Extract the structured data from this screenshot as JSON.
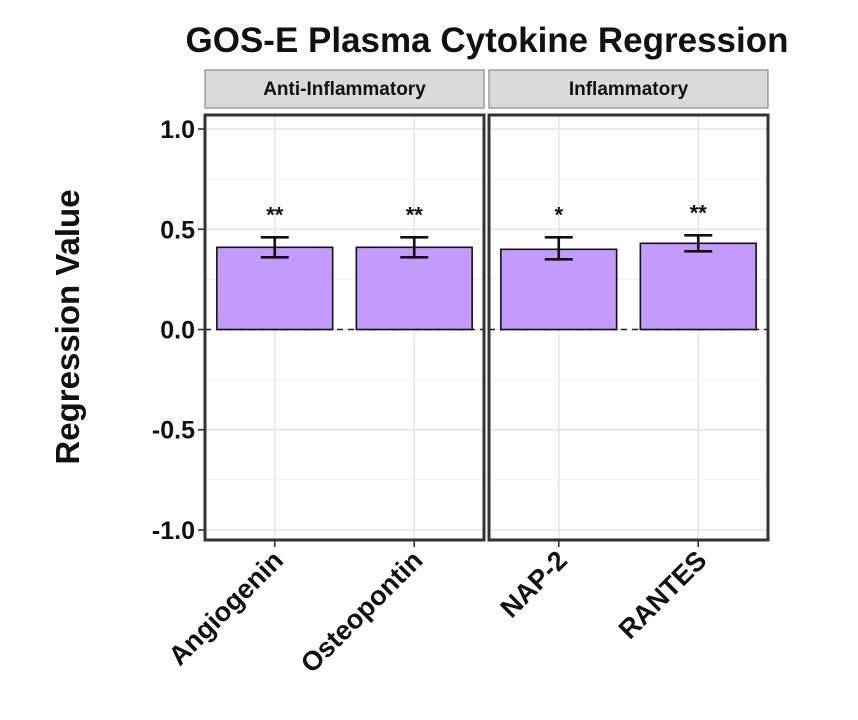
{
  "chart_data": {
    "type": "bar",
    "title": "GOS-E Plasma Cytokine Regression",
    "xlabel": "",
    "ylabel": "Regression Value",
    "ylim": [
      -1.05,
      1.07
    ],
    "yticks": [
      1.0,
      0.5,
      0.0,
      -0.5,
      -1.0
    ],
    "ytick_labels": [
      "1.0",
      "0.5",
      "0.0",
      "-0.5",
      "-1.0"
    ],
    "grid": true,
    "bar_color": "#c39bff",
    "facets": [
      {
        "label": "Anti-Inflammatory",
        "bars": [
          {
            "category": "Angiogenin",
            "value": 0.41,
            "err_low": 0.36,
            "err_high": 0.46,
            "significance": "**"
          },
          {
            "category": "Osteopontin",
            "value": 0.41,
            "err_low": 0.36,
            "err_high": 0.46,
            "significance": "**"
          }
        ]
      },
      {
        "label": "Inflammatory",
        "bars": [
          {
            "category": "NAP-2",
            "value": 0.4,
            "err_low": 0.35,
            "err_high": 0.46,
            "significance": "*"
          },
          {
            "category": "RANTES",
            "value": 0.43,
            "err_low": 0.39,
            "err_high": 0.47,
            "significance": "**"
          }
        ]
      }
    ]
  }
}
